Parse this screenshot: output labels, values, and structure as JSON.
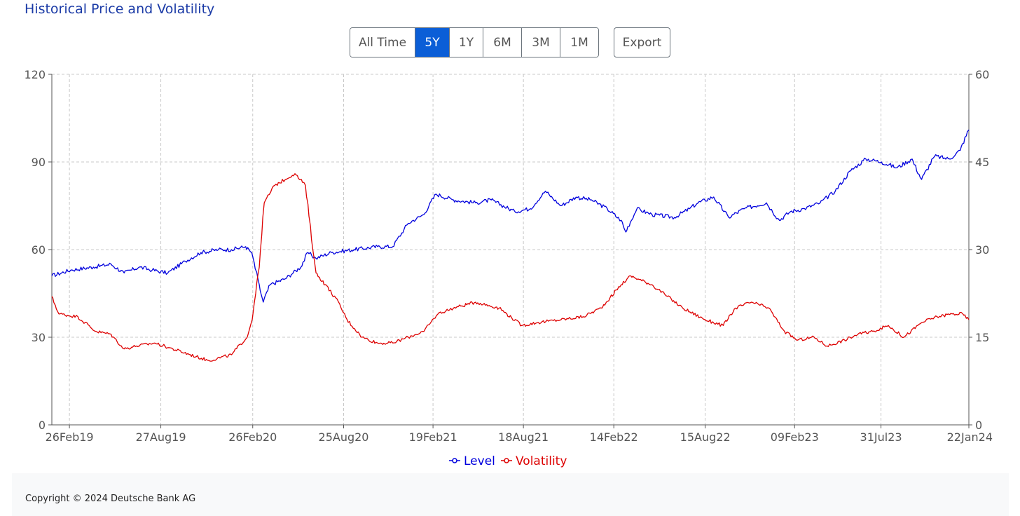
{
  "header": {
    "title": "Historical Price and Volatility"
  },
  "range_buttons": [
    {
      "label": "All Time",
      "active": false
    },
    {
      "label": "5Y",
      "active": true
    },
    {
      "label": "1Y",
      "active": false
    },
    {
      "label": "6M",
      "active": false
    },
    {
      "label": "3M",
      "active": false
    },
    {
      "label": "1M",
      "active": false
    }
  ],
  "export_label": "Export",
  "footer": {
    "copyright": "Copyright © 2024 Deutsche Bank AG"
  },
  "colors": {
    "level": "#0000dd",
    "volatility": "#dd0000",
    "active_button": "#0b5ed7",
    "title": "#1a3aa6"
  },
  "chart_data": {
    "type": "line",
    "x_ticks": [
      "26Feb19",
      "27Aug19",
      "26Feb20",
      "25Aug20",
      "19Feb21",
      "18Aug21",
      "14Feb22",
      "15Aug22",
      "09Feb23",
      "31Jul23",
      "22Jan24"
    ],
    "y_left": {
      "range": [
        0,
        120
      ],
      "ticks": [
        "0",
        "30",
        "60",
        "90",
        "120"
      ]
    },
    "y_right": {
      "range": [
        0,
        60
      ],
      "ticks": [
        "0",
        "15",
        "30",
        "45",
        "60"
      ]
    },
    "grid": true,
    "legend_position": "bottom-center",
    "series": [
      {
        "name": "Level",
        "axis": "left",
        "points": [
          [
            "2019-01-22",
            51
          ],
          [
            "2019-03-01",
            53
          ],
          [
            "2019-04-15",
            54
          ],
          [
            "2019-05-20",
            55
          ],
          [
            "2019-06-15",
            52
          ],
          [
            "2019-07-15",
            54
          ],
          [
            "2019-08-10",
            53
          ],
          [
            "2019-09-10",
            52
          ],
          [
            "2019-10-15",
            56
          ],
          [
            "2019-11-15",
            59
          ],
          [
            "2019-12-20",
            60
          ],
          [
            "2020-01-15",
            60
          ],
          [
            "2020-02-12",
            61
          ],
          [
            "2020-02-24",
            59
          ],
          [
            "2020-03-10",
            48
          ],
          [
            "2020-03-18",
            42
          ],
          [
            "2020-04-01",
            48
          ],
          [
            "2020-05-01",
            50
          ],
          [
            "2020-06-01",
            54
          ],
          [
            "2020-06-15",
            59
          ],
          [
            "2020-07-01",
            57
          ],
          [
            "2020-08-01",
            59
          ],
          [
            "2020-09-15",
            60
          ],
          [
            "2020-11-01",
            61
          ],
          [
            "2020-12-01",
            61
          ],
          [
            "2021-01-01",
            69
          ],
          [
            "2021-02-01",
            72
          ],
          [
            "2021-02-25",
            79
          ],
          [
            "2021-04-01",
            77
          ],
          [
            "2021-05-15",
            76
          ],
          [
            "2021-06-15",
            77
          ],
          [
            "2021-08-01",
            73
          ],
          [
            "2021-09-01",
            74
          ],
          [
            "2021-10-01",
            80
          ],
          [
            "2021-11-01",
            75
          ],
          [
            "2021-12-01",
            78
          ],
          [
            "2022-01-01",
            77
          ],
          [
            "2022-02-01",
            74
          ],
          [
            "2022-03-01",
            70
          ],
          [
            "2022-03-10",
            66
          ],
          [
            "2022-04-01",
            74
          ],
          [
            "2022-05-01",
            72
          ],
          [
            "2022-06-15",
            71
          ],
          [
            "2022-07-15",
            74
          ],
          [
            "2022-08-01",
            76
          ],
          [
            "2022-09-01",
            78
          ],
          [
            "2022-10-01",
            71
          ],
          [
            "2022-11-01",
            74
          ],
          [
            "2022-12-15",
            76
          ],
          [
            "2023-01-10",
            70
          ],
          [
            "2023-02-01",
            73
          ],
          [
            "2023-03-01",
            74
          ],
          [
            "2023-04-01",
            76
          ],
          [
            "2023-05-01",
            80
          ],
          [
            "2023-06-01",
            87
          ],
          [
            "2023-07-01",
            91
          ],
          [
            "2023-08-01",
            90
          ],
          [
            "2023-09-01",
            88
          ],
          [
            "2023-10-01",
            91
          ],
          [
            "2023-10-20",
            84
          ],
          [
            "2023-11-15",
            92
          ],
          [
            "2023-12-15",
            91
          ],
          [
            "2024-01-05",
            94
          ],
          [
            "2024-01-22",
            101
          ]
        ]
      },
      {
        "name": "Volatility",
        "axis": "right",
        "points": [
          [
            "2019-01-22",
            22
          ],
          [
            "2019-02-05",
            19
          ],
          [
            "2019-03-15",
            18.5
          ],
          [
            "2019-04-20",
            16
          ],
          [
            "2019-05-20",
            15.5
          ],
          [
            "2019-06-15",
            13
          ],
          [
            "2019-07-10",
            13.5
          ],
          [
            "2019-08-15",
            14
          ],
          [
            "2019-09-20",
            13
          ],
          [
            "2019-10-25",
            12
          ],
          [
            "2019-12-01",
            11
          ],
          [
            "2020-01-15",
            12
          ],
          [
            "2020-02-15",
            15
          ],
          [
            "2020-02-25",
            18
          ],
          [
            "2020-03-10",
            27
          ],
          [
            "2020-03-20",
            38
          ],
          [
            "2020-04-10",
            41
          ],
          [
            "2020-05-01",
            42
          ],
          [
            "2020-05-20",
            43
          ],
          [
            "2020-06-10",
            41
          ],
          [
            "2020-06-20",
            34
          ],
          [
            "2020-07-01",
            26
          ],
          [
            "2020-07-20",
            24
          ],
          [
            "2020-08-15",
            21
          ],
          [
            "2020-09-01",
            18
          ],
          [
            "2020-10-01",
            15
          ],
          [
            "2020-11-01",
            14
          ],
          [
            "2020-12-01",
            14
          ],
          [
            "2021-01-01",
            15
          ],
          [
            "2021-02-01",
            16
          ],
          [
            "2021-03-01",
            19
          ],
          [
            "2021-04-01",
            20
          ],
          [
            "2021-05-15",
            21
          ],
          [
            "2021-07-01",
            20
          ],
          [
            "2021-08-15",
            17
          ],
          [
            "2021-09-15",
            17.5
          ],
          [
            "2021-11-01",
            18
          ],
          [
            "2021-12-15",
            18.5
          ],
          [
            "2022-01-20",
            20
          ],
          [
            "2022-03-01",
            24
          ],
          [
            "2022-03-20",
            25.5
          ],
          [
            "2022-05-01",
            24
          ],
          [
            "2022-06-01",
            22
          ],
          [
            "2022-07-01",
            20
          ],
          [
            "2022-08-15",
            18
          ],
          [
            "2022-09-20",
            17
          ],
          [
            "2022-10-15",
            20
          ],
          [
            "2022-11-15",
            21
          ],
          [
            "2022-12-20",
            20
          ],
          [
            "2023-01-20",
            16
          ],
          [
            "2023-02-15",
            14.5
          ],
          [
            "2023-03-20",
            15
          ],
          [
            "2023-04-15",
            13.5
          ],
          [
            "2023-05-20",
            14.5
          ],
          [
            "2023-06-15",
            15.5
          ],
          [
            "2023-07-15",
            16
          ],
          [
            "2023-08-15",
            17
          ],
          [
            "2023-09-15",
            15
          ],
          [
            "2023-10-20",
            17.5
          ],
          [
            "2023-11-20",
            18.5
          ],
          [
            "2023-12-20",
            19
          ],
          [
            "2024-01-10",
            19
          ],
          [
            "2024-01-22",
            18
          ]
        ]
      }
    ]
  }
}
